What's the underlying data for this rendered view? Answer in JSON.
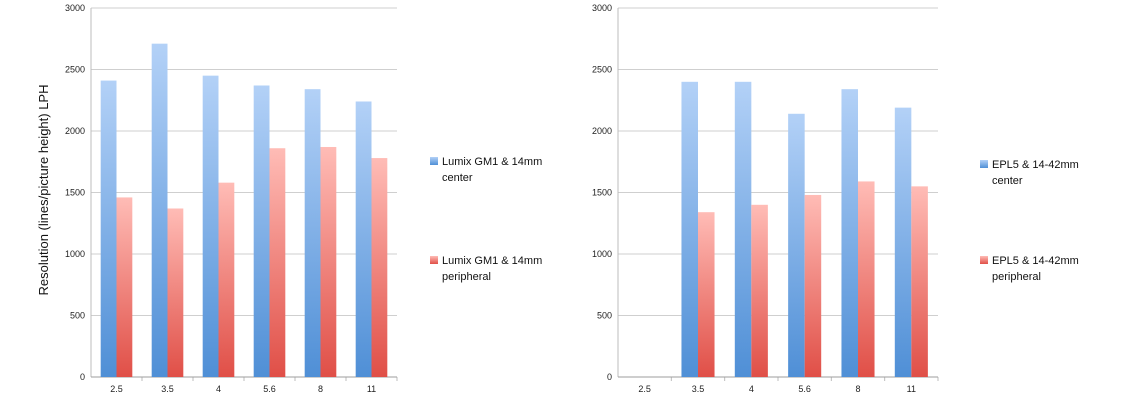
{
  "chart_data": [
    {
      "type": "bar",
      "ylabel": "Resolution (lines/picture height)  LPH",
      "xlabel": "",
      "title": "",
      "categories": [
        "2.5",
        "3.5",
        "4",
        "5.6",
        "8",
        "11"
      ],
      "ylim": [
        0,
        3000
      ],
      "yticks": [
        "0",
        "500",
        "1000",
        "1500",
        "2000",
        "2500",
        "3000"
      ],
      "ytick_values": [
        0,
        500,
        1000,
        1500,
        2000,
        2500,
        3000
      ],
      "grid": true,
      "legend_position": "right",
      "series": [
        {
          "name": "Lumix GM1 & 14mm center",
          "legend_lines": [
            "Lumix GM1 & 14mm",
            "center"
          ],
          "color": "#5b9bd5",
          "values": [
            2410,
            2710,
            2450,
            2370,
            2340,
            2240
          ]
        },
        {
          "name": "Lumix GM1 & 14mm peripheral",
          "legend_lines": [
            "Lumix GM1 & 14mm",
            "peripheral"
          ],
          "color": "#e8605c",
          "values": [
            1460,
            1370,
            1580,
            1860,
            1870,
            1780
          ]
        }
      ]
    },
    {
      "type": "bar",
      "ylabel": "",
      "xlabel": "",
      "title": "",
      "categories": [
        "2.5",
        "3.5",
        "4",
        "5.6",
        "8",
        "11"
      ],
      "ylim": [
        0,
        3000
      ],
      "yticks": [
        "0",
        "500",
        "1000",
        "1500",
        "2000",
        "2500",
        "3000"
      ],
      "ytick_values": [
        0,
        500,
        1000,
        1500,
        2000,
        2500,
        3000
      ],
      "grid": true,
      "legend_position": "right",
      "series": [
        {
          "name": "EPL5 & 14-42mm center",
          "legend_lines": [
            "EPL5 & 14-42mm",
            "center"
          ],
          "color": "#5b9bd5",
          "values": [
            null,
            2400,
            2400,
            2140,
            2340,
            2190
          ]
        },
        {
          "name": "EPL5 & 14-42mm peripheral",
          "legend_lines": [
            "EPL5 & 14-42mm",
            "peripheral"
          ],
          "color": "#e8605c",
          "values": [
            null,
            1340,
            1400,
            1480,
            1590,
            1550
          ]
        }
      ]
    }
  ]
}
